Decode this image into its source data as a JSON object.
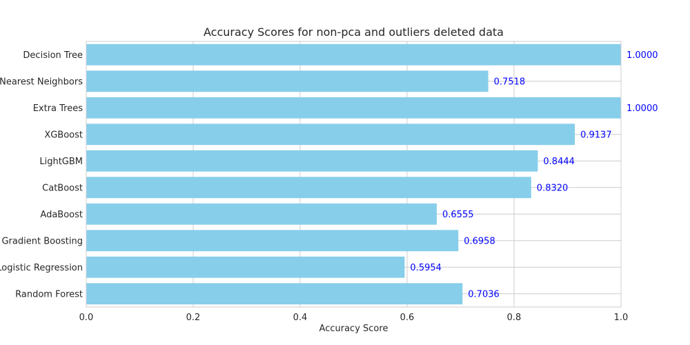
{
  "chart_data": {
    "type": "bar",
    "orientation": "horizontal",
    "title": "Accuracy Scores for non-pca and outliers deleted data",
    "xlabel": "Accuracy Score",
    "ylabel": "",
    "xlim": [
      0,
      1.0
    ],
    "xticks": [
      "0.0",
      "0.2",
      "0.4",
      "0.6",
      "0.8",
      "1.0"
    ],
    "xtick_values": [
      0,
      0.2,
      0.4,
      0.6,
      0.8,
      1.0
    ],
    "grid": true,
    "bar_color": "#87ceeb",
    "label_color": "#0000ff",
    "categories": [
      "Decision Tree",
      "K-Nearest Neighbors",
      "Extra Trees",
      "XGBoost",
      "LightGBM",
      "CatBoost",
      "AdaBoost",
      "Gradient Boosting",
      "Logistic Regression",
      "Random Forest"
    ],
    "values": [
      1.0,
      0.7518,
      1.0,
      0.9137,
      0.8444,
      0.832,
      0.6555,
      0.6958,
      0.5954,
      0.7036
    ],
    "value_labels": [
      "1.0000",
      "0.7518",
      "1.0000",
      "0.9137",
      "0.8444",
      "0.8320",
      "0.6555",
      "0.6958",
      "0.5954",
      "0.7036"
    ]
  }
}
